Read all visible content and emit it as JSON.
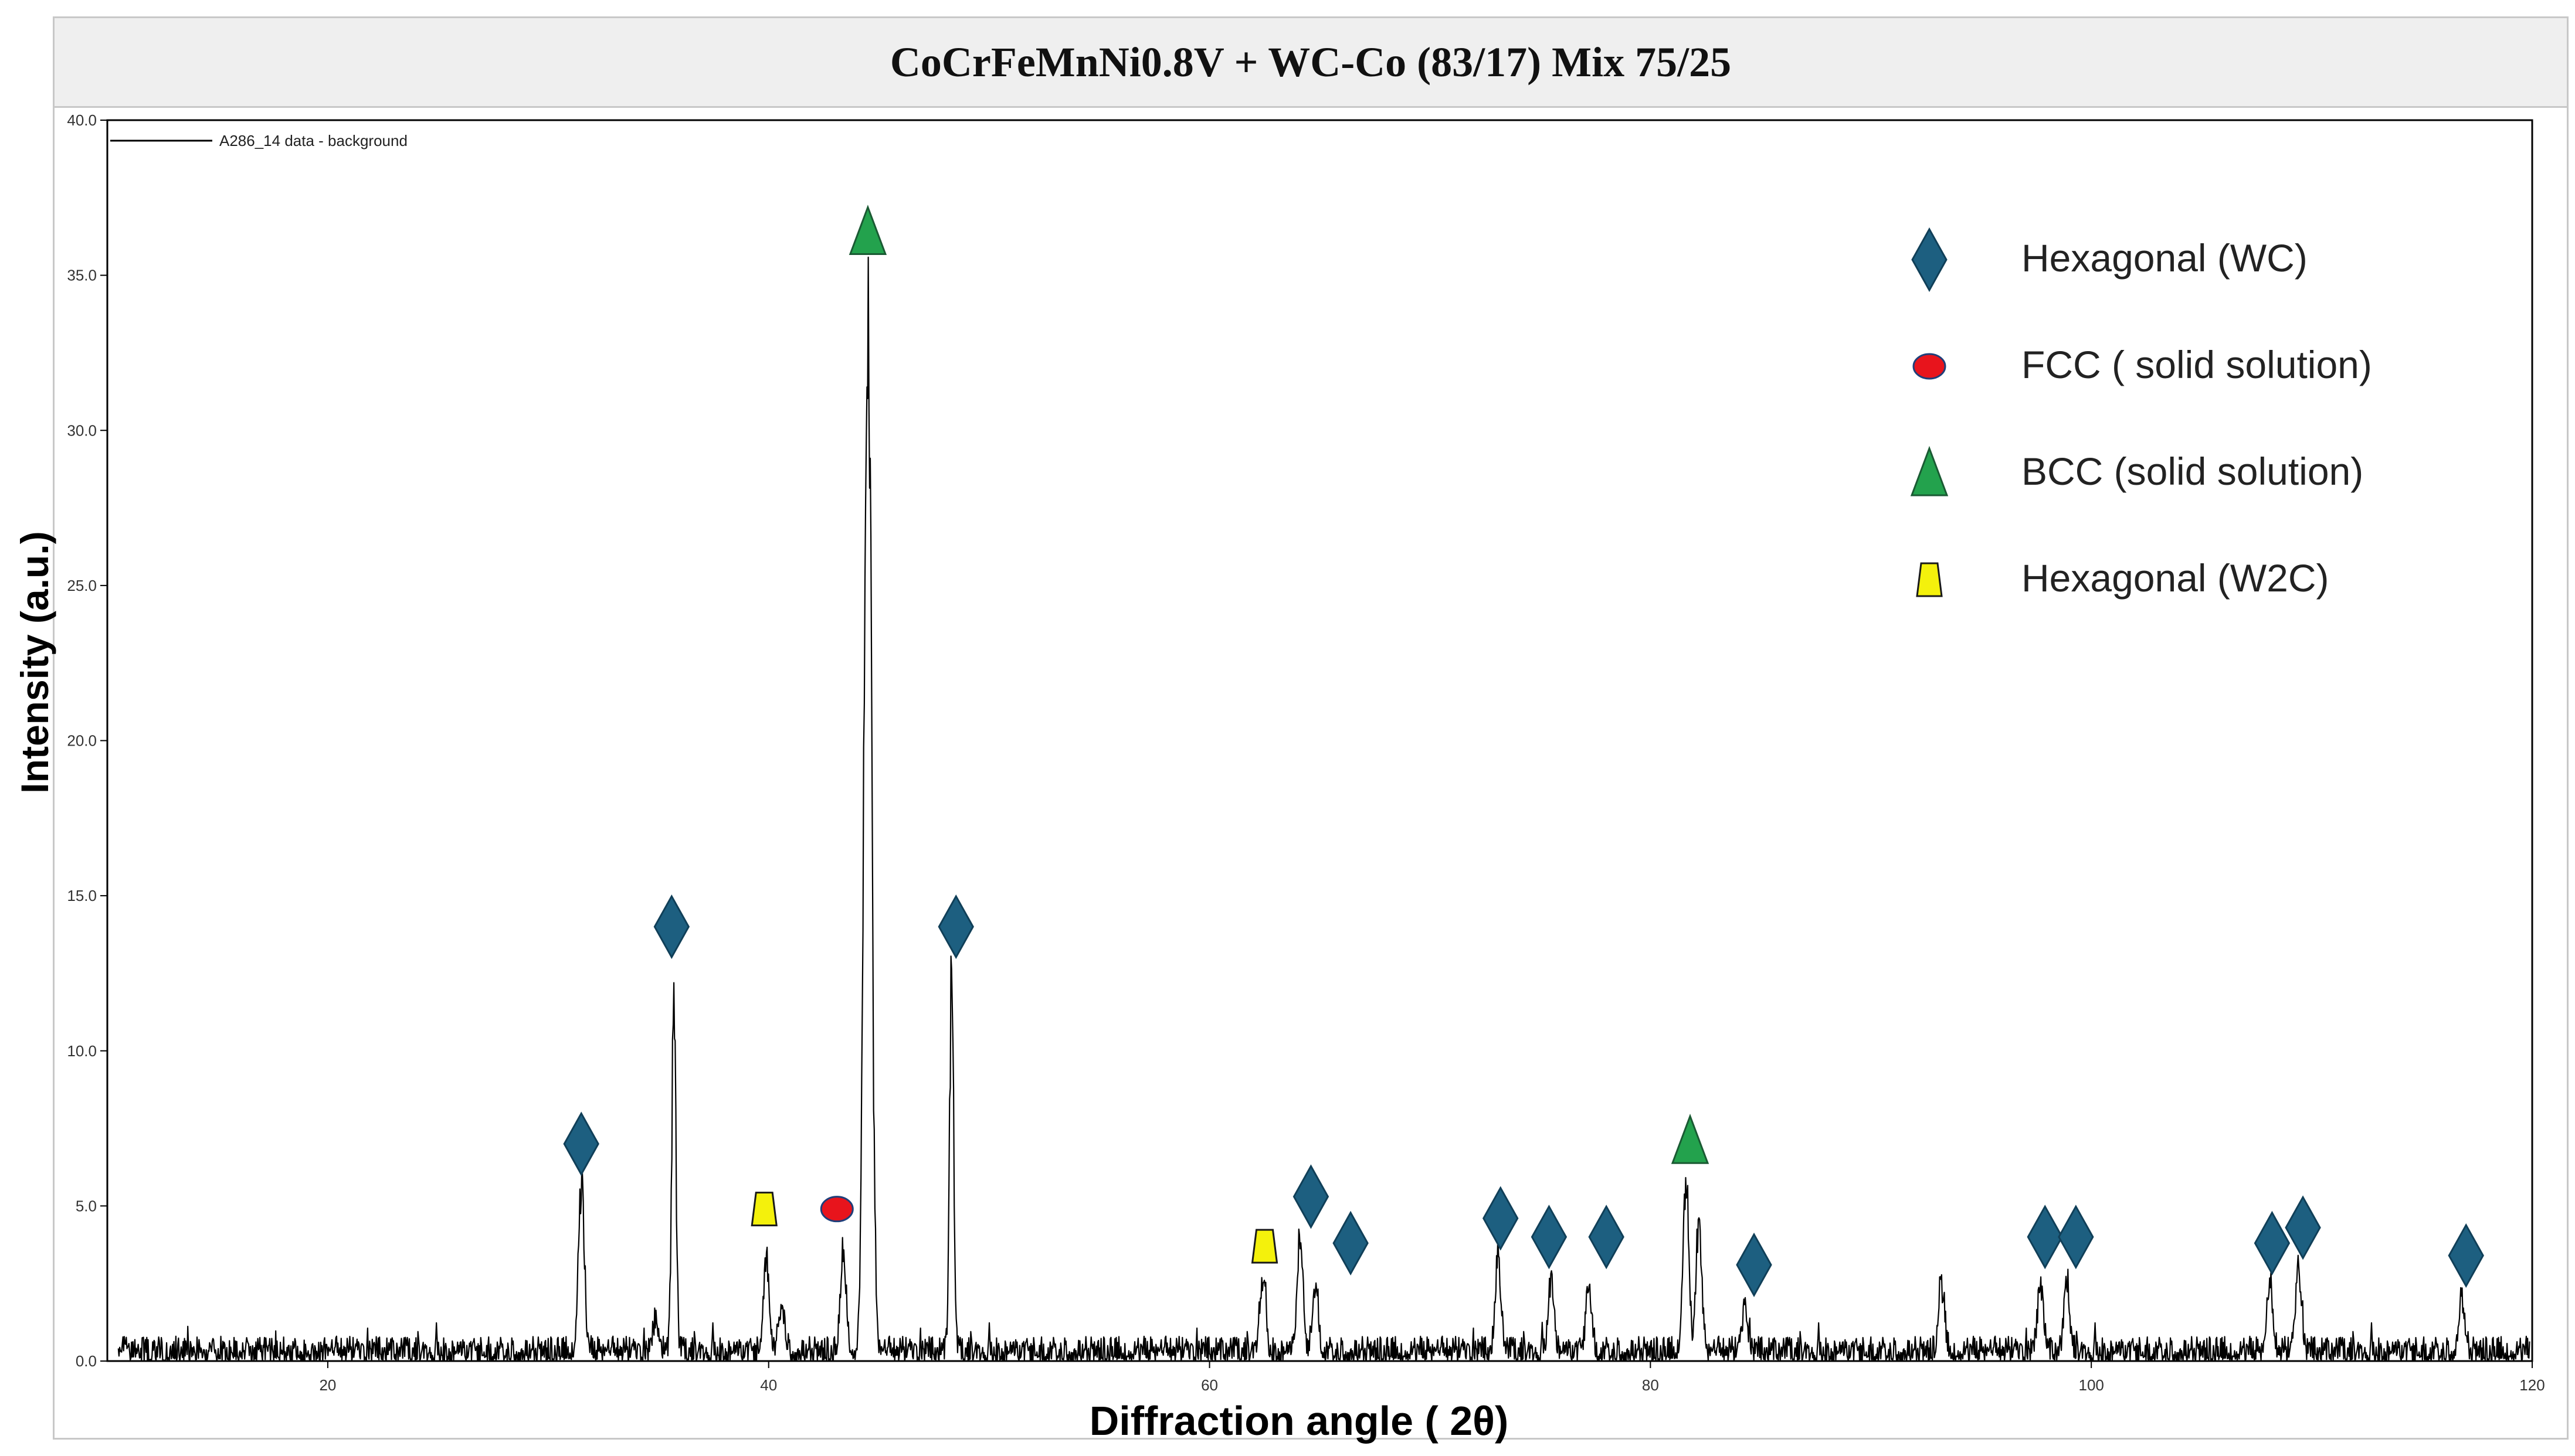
{
  "chart_data": {
    "type": "line",
    "title": "CoCrFeMnNi0.8V + WC-Co (83/17) Mix 75/25",
    "xlabel": "Diffraction angle ( 2θ)",
    "ylabel": "Intensity (a.u.)",
    "xlim": [
      10,
      120
    ],
    "ylim": [
      0,
      40
    ],
    "x_ticks": [
      "20",
      "40",
      "60",
      "80",
      "100",
      "120"
    ],
    "y_ticks": [
      "0.0",
      "5.0",
      "10.0",
      "15.0",
      "20.0",
      "25.0",
      "30.0",
      "35.0",
      "40.0"
    ],
    "grid": false,
    "series": [
      {
        "name": "A286_14 data - background",
        "color": "#000000",
        "baseline_noise": 0.8,
        "peaks": [
          {
            "x": 31.5,
            "y": 5.5
          },
          {
            "x": 34.9,
            "y": 1.0
          },
          {
            "x": 35.7,
            "y": 12.0
          },
          {
            "x": 39.9,
            "y": 3.2
          },
          {
            "x": 40.6,
            "y": 1.6
          },
          {
            "x": 43.4,
            "y": 3.2
          },
          {
            "x": 44.5,
            "y": 35.0
          },
          {
            "x": 48.3,
            "y": 12.2
          },
          {
            "x": 62.4,
            "y": 2.5
          },
          {
            "x": 64.1,
            "y": 3.5
          },
          {
            "x": 64.8,
            "y": 2.2
          },
          {
            "x": 73.1,
            "y": 2.9
          },
          {
            "x": 75.5,
            "y": 2.5
          },
          {
            "x": 77.2,
            "y": 2.2
          },
          {
            "x": 81.6,
            "y": 5.6
          },
          {
            "x": 82.2,
            "y": 4.0
          },
          {
            "x": 84.3,
            "y": 1.4
          },
          {
            "x": 93.2,
            "y": 2.2
          },
          {
            "x": 97.7,
            "y": 2.3
          },
          {
            "x": 98.9,
            "y": 2.1
          },
          {
            "x": 108.1,
            "y": 2.0
          },
          {
            "x": 109.4,
            "y": 2.6
          },
          {
            "x": 116.8,
            "y": 1.8
          }
        ]
      }
    ],
    "legend": {
      "placement": "top-right",
      "entries": [
        {
          "label": "Hexagonal (WC)",
          "marker": "diamond",
          "color": "#1d5f80"
        },
        {
          "label": "FCC ( solid solution)",
          "marker": "circle",
          "color": "#e8141c"
        },
        {
          "label": "BCC (solid solution)",
          "marker": "triangle",
          "color": "#23a24d"
        },
        {
          "label": "Hexagonal (W2C)",
          "marker": "trapezoid",
          "color": "#f4f10c"
        }
      ]
    },
    "data_legend": {
      "placement": "top-left",
      "label": "A286_14 data - background"
    },
    "phase_markers": [
      {
        "phase": "Hexagonal (WC)",
        "x": 31.5,
        "y": 7.0
      },
      {
        "phase": "Hexagonal (WC)",
        "x": 35.6,
        "y": 14.0
      },
      {
        "phase": "Hexagonal (W2C)",
        "x": 39.8,
        "y": 4.9
      },
      {
        "phase": "FCC ( solid solution)",
        "x": 43.1,
        "y": 4.9
      },
      {
        "phase": "BCC (solid solution)",
        "x": 44.5,
        "y": 36.4
      },
      {
        "phase": "Hexagonal (WC)",
        "x": 48.5,
        "y": 14.0
      },
      {
        "phase": "Hexagonal (W2C)",
        "x": 62.5,
        "y": 3.7
      },
      {
        "phase": "Hexagonal (WC)",
        "x": 64.6,
        "y": 5.3
      },
      {
        "phase": "Hexagonal (WC)",
        "x": 66.4,
        "y": 3.8
      },
      {
        "phase": "Hexagonal (WC)",
        "x": 73.2,
        "y": 4.6
      },
      {
        "phase": "Hexagonal (WC)",
        "x": 75.4,
        "y": 4.0
      },
      {
        "phase": "Hexagonal (WC)",
        "x": 78.0,
        "y": 4.0
      },
      {
        "phase": "BCC (solid solution)",
        "x": 81.8,
        "y": 7.1
      },
      {
        "phase": "Hexagonal (WC)",
        "x": 84.7,
        "y": 3.1
      },
      {
        "phase": "Hexagonal (WC)",
        "x": 97.9,
        "y": 4.0
      },
      {
        "phase": "Hexagonal (WC)",
        "x": 99.3,
        "y": 4.0
      },
      {
        "phase": "Hexagonal (WC)",
        "x": 108.2,
        "y": 3.8
      },
      {
        "phase": "Hexagonal (WC)",
        "x": 109.6,
        "y": 4.3
      },
      {
        "phase": "Hexagonal (WC)",
        "x": 117.0,
        "y": 3.4
      }
    ]
  }
}
